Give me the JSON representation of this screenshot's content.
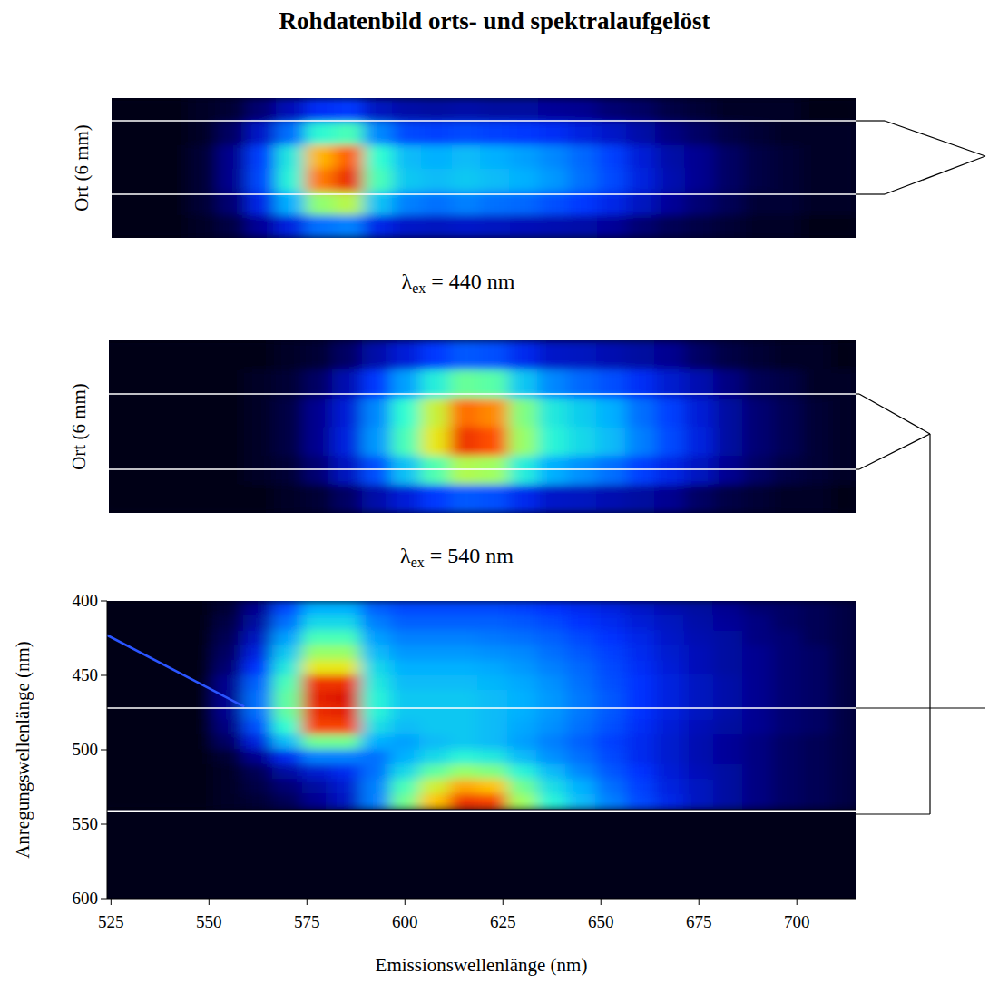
{
  "title": "Rohdatenbild orts- und spektralaufgelöst",
  "chart_data": [
    {
      "type": "heatmap",
      "ylabel": "Ort (6 mm)",
      "annotation": "λex = 440 nm",
      "tick_labels": false,
      "xlim": [
        524,
        715
      ],
      "ylim": [
        0,
        6
      ],
      "color_range": [
        0,
        100
      ],
      "x": [
        525,
        532.5,
        540,
        547.5,
        555,
        562.5,
        570,
        577.5,
        585,
        592.5,
        600,
        607.5,
        615,
        622.5,
        630,
        637.5,
        645,
        652.5,
        660,
        667.5,
        675,
        682.5,
        690,
        697.5,
        705,
        712.5
      ],
      "y": [
        0.5,
        1.5,
        2.5,
        3.5,
        4.5,
        5.5
      ],
      "cells": [
        [
          0,
          0,
          0,
          1,
          3,
          9,
          18,
          30,
          32,
          19,
          15,
          14,
          15,
          14,
          13,
          12,
          11,
          9,
          6,
          4,
          3,
          2,
          1,
          1,
          0,
          0
        ],
        [
          0,
          0,
          0,
          2,
          6,
          19,
          38,
          64,
          69,
          41,
          32,
          30,
          32,
          30,
          29,
          26,
          23,
          19,
          14,
          9,
          6,
          4,
          2,
          2,
          1,
          1
        ],
        [
          0,
          0,
          0,
          2,
          8,
          25,
          50,
          85,
          93,
          55,
          42,
          40,
          42,
          40,
          38,
          35,
          30,
          25,
          18,
          12,
          8,
          5,
          3,
          2,
          1,
          1
        ],
        [
          0,
          0,
          0,
          2,
          8,
          24,
          48,
          81,
          87,
          52,
          40,
          38,
          40,
          38,
          36,
          33,
          29,
          24,
          17,
          11,
          8,
          5,
          3,
          2,
          1,
          1
        ],
        [
          0,
          0,
          0,
          1,
          5,
          15,
          30,
          51,
          55,
          33,
          25,
          24,
          25,
          24,
          23,
          21,
          18,
          15,
          11,
          7,
          5,
          3,
          2,
          1,
          1,
          1
        ],
        [
          0,
          0,
          0,
          1,
          2,
          6,
          13,
          21,
          23,
          14,
          11,
          10,
          11,
          10,
          10,
          9,
          8,
          6,
          5,
          3,
          2,
          1,
          1,
          1,
          0,
          0
        ]
      ]
    },
    {
      "type": "heatmap",
      "ylabel": "Ort (6 mm)",
      "annotation": "λex = 540 nm",
      "tick_labels": false,
      "xlim": [
        524,
        715
      ],
      "ylim": [
        0,
        6
      ],
      "color_range": [
        0,
        100
      ],
      "x": [
        525,
        532.5,
        540,
        547.5,
        555,
        562.5,
        570,
        577.5,
        585,
        592.5,
        600,
        607.5,
        615,
        622.5,
        630,
        637.5,
        645,
        652.5,
        660,
        667.5,
        675,
        682.5,
        690,
        697.5,
        705,
        712.5
      ],
      "y": [
        0.5,
        1.5,
        2.5,
        3.5,
        4.5,
        5.5
      ],
      "cells": [
        [
          0,
          0,
          0,
          0,
          0,
          0,
          1,
          2,
          5,
          11,
          17,
          23,
          27,
          26,
          20,
          15,
          14,
          12,
          10,
          8,
          5,
          3,
          2,
          1,
          1,
          0
        ],
        [
          0,
          0,
          0,
          0,
          0,
          1,
          2,
          6,
          14,
          26,
          41,
          56,
          68,
          66,
          49,
          38,
          34,
          30,
          24,
          19,
          14,
          8,
          5,
          3,
          2,
          1
        ],
        [
          0,
          0,
          0,
          0,
          0,
          1,
          3,
          8,
          18,
          35,
          55,
          75,
          92,
          88,
          65,
          50,
          45,
          40,
          32,
          25,
          18,
          10,
          6,
          4,
          2,
          1
        ],
        [
          0,
          0,
          0,
          0,
          0,
          1,
          3,
          8,
          17,
          33,
          52,
          71,
          86,
          84,
          62,
          48,
          43,
          38,
          30,
          24,
          17,
          10,
          6,
          4,
          2,
          1
        ],
        [
          0,
          0,
          0,
          0,
          0,
          1,
          2,
          5,
          12,
          23,
          36,
          49,
          59,
          57,
          42,
          33,
          29,
          26,
          21,
          16,
          12,
          7,
          4,
          3,
          1,
          1
        ],
        [
          0,
          0,
          0,
          0,
          0,
          0,
          1,
          2,
          5,
          11,
          17,
          23,
          27,
          26,
          20,
          15,
          14,
          12,
          10,
          8,
          5,
          3,
          2,
          1,
          1,
          0
        ]
      ]
    },
    {
      "type": "heatmap",
      "xlabel": "Emissionswellenlänge (nm)",
      "ylabel": "Anregungswellenlänge (nm)",
      "xlim": [
        524,
        715
      ],
      "ylim": [
        600,
        400
      ],
      "color_range": [
        0,
        100
      ],
      "xticks": [
        525,
        550,
        575,
        600,
        625,
        650,
        675,
        700
      ],
      "yticks": [
        400,
        450,
        500,
        550,
        600
      ],
      "hlines": [
        472,
        541
      ],
      "scatter_line": {
        "x": [
          524,
          559
        ],
        "y": [
          423,
          471
        ]
      },
      "x": [
        525,
        532.5,
        540,
        547.5,
        555,
        562.5,
        570,
        577.5,
        585,
        592.5,
        600,
        607.5,
        615,
        622.5,
        630,
        637.5,
        645,
        652.5,
        660,
        667.5,
        675,
        682.5,
        690,
        697.5,
        705,
        712.5
      ],
      "y": [
        405,
        415,
        425,
        435,
        445,
        455,
        465,
        475,
        485,
        495,
        505,
        515,
        525,
        535
      ],
      "cells": [
        [
          0,
          0,
          0,
          0,
          2,
          8,
          25,
          38,
          38,
          28,
          25,
          25,
          25,
          25,
          24,
          22,
          20,
          18,
          15,
          12,
          10,
          8,
          6,
          5,
          4,
          3
        ],
        [
          0,
          0,
          0,
          0,
          3,
          10,
          30,
          45,
          45,
          32,
          28,
          28,
          28,
          28,
          27,
          25,
          22,
          20,
          17,
          14,
          11,
          9,
          7,
          5,
          4,
          3
        ],
        [
          0,
          0,
          0,
          0,
          4,
          14,
          36,
          55,
          55,
          36,
          32,
          32,
          32,
          31,
          30,
          28,
          25,
          22,
          19,
          15,
          12,
          10,
          7,
          6,
          4,
          3
        ],
        [
          0,
          0,
          0,
          0,
          5,
          18,
          42,
          65,
          65,
          40,
          35,
          35,
          35,
          34,
          33,
          30,
          27,
          24,
          20,
          16,
          13,
          10,
          8,
          6,
          5,
          3
        ],
        [
          0,
          0,
          0,
          0,
          6,
          22,
          48,
          75,
          75,
          45,
          38,
          38,
          38,
          37,
          35,
          32,
          29,
          25,
          21,
          17,
          13,
          10,
          8,
          6,
          5,
          3
        ],
        [
          0,
          0,
          0,
          0,
          8,
          28,
          55,
          92,
          92,
          48,
          40,
          40,
          40,
          39,
          37,
          34,
          30,
          26,
          22,
          18,
          14,
          11,
          8,
          6,
          5,
          3
        ],
        [
          0,
          0,
          0,
          0,
          8,
          30,
          58,
          95,
          97,
          50,
          42,
          42,
          42,
          40,
          38,
          35,
          31,
          27,
          22,
          18,
          14,
          11,
          8,
          6,
          5,
          3
        ],
        [
          0,
          0,
          0,
          0,
          8,
          30,
          58,
          93,
          95,
          50,
          42,
          42,
          42,
          40,
          38,
          35,
          31,
          27,
          22,
          18,
          14,
          11,
          8,
          6,
          5,
          3
        ],
        [
          0,
          0,
          0,
          0,
          7,
          26,
          52,
          90,
          90,
          46,
          40,
          42,
          42,
          40,
          37,
          34,
          30,
          26,
          21,
          17,
          13,
          10,
          8,
          6,
          5,
          3
        ],
        [
          0,
          0,
          0,
          0,
          5,
          18,
          40,
          60,
          60,
          38,
          36,
          40,
          42,
          40,
          36,
          32,
          28,
          24,
          20,
          16,
          12,
          9,
          7,
          5,
          4,
          3
        ],
        [
          0,
          0,
          0,
          0,
          2,
          8,
          20,
          32,
          32,
          30,
          38,
          45,
          50,
          48,
          40,
          34,
          30,
          25,
          20,
          16,
          12,
          9,
          7,
          5,
          4,
          3
        ],
        [
          0,
          0,
          0,
          0,
          1,
          4,
          10,
          16,
          20,
          30,
          45,
          58,
          65,
          62,
          50,
          40,
          33,
          27,
          22,
          17,
          13,
          10,
          7,
          5,
          4,
          3
        ],
        [
          0,
          0,
          0,
          0,
          1,
          3,
          6,
          10,
          16,
          32,
          55,
          72,
          82,
          80,
          60,
          46,
          38,
          30,
          24,
          18,
          14,
          10,
          7,
          5,
          4,
          3
        ],
        [
          0,
          0,
          0,
          0,
          1,
          2,
          4,
          8,
          14,
          32,
          60,
          80,
          92,
          90,
          66,
          50,
          40,
          32,
          25,
          19,
          14,
          10,
          7,
          5,
          4,
          3
        ]
      ]
    }
  ]
}
